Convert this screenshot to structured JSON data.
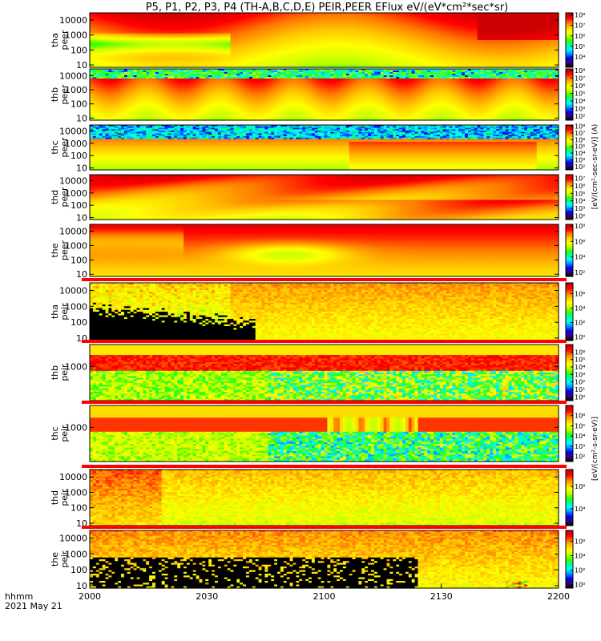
{
  "chart_data": {
    "type": "heatmap",
    "title": "P5, P1, P2, P3, P4 (TH-A,B,C,D,E) PEIR,PEER EFlux eV/(eV*cm²*sec*sr)",
    "x_axis": {
      "label_line1": "hhmm",
      "label_line2": "2021 May 21",
      "ticks": [
        "2000",
        "2030",
        "2100",
        "2130",
        "2200"
      ],
      "range_minutes": [
        0,
        120
      ]
    },
    "colorbar_unit_electron": "[eV/(cm²-sec-sr-eV)] (A)",
    "colorbar_unit_ion": "[eV/(cm²-s-sr-eV)]",
    "panels": [
      {
        "name": "tha-peer",
        "label1": "tha",
        "label2": "peer",
        "yticks": [
          "10",
          "100",
          "1000",
          "10000"
        ],
        "ylim": [
          7,
          30000
        ],
        "cbar_ticks": [
          "10⁴",
          "10⁵",
          "10⁶",
          "10⁷",
          "10⁸"
        ],
        "cbar_range": [
          3,
          8.2
        ],
        "bar_above": false
      },
      {
        "name": "thb-peer",
        "label1": "thb",
        "label2": "peer",
        "yticks": [
          "10",
          "100",
          "1000",
          "10000"
        ],
        "ylim": [
          7,
          30000
        ],
        "cbar_ticks": [
          "10²",
          "10³",
          "10⁴",
          "10⁵",
          "10⁶",
          "10⁷",
          "10⁸"
        ],
        "cbar_range": [
          1.5,
          8.2
        ],
        "bar_above": false
      },
      {
        "name": "thc-peer",
        "label1": "thc",
        "label2": "peer",
        "yticks": [
          "10",
          "100",
          "1000",
          "10000"
        ],
        "ylim": [
          7,
          30000
        ],
        "cbar_ticks": [
          "10²",
          "10³",
          "10⁴",
          "10⁵",
          "10⁶",
          "10⁷",
          "10⁸"
        ],
        "cbar_range": [
          1.5,
          8.2
        ],
        "bar_above": false
      },
      {
        "name": "thd-peer",
        "label1": "thd",
        "label2": "peer",
        "yticks": [
          "10",
          "100",
          "1000",
          "10000"
        ],
        "ylim": [
          7,
          30000
        ],
        "cbar_ticks": [
          "10²",
          "10³",
          "10⁴",
          "10⁵",
          "10⁶",
          "10⁷"
        ],
        "cbar_range": [
          1.5,
          7.5
        ],
        "bar_above": false
      },
      {
        "name": "the-peer",
        "label1": "the",
        "label2": "peer",
        "yticks": [
          "10",
          "100",
          "1000",
          "10000"
        ],
        "ylim": [
          7,
          30000
        ],
        "cbar_ticks": [
          "10²",
          "10⁴",
          "10⁶",
          "10⁸"
        ],
        "cbar_range": [
          1.5,
          8.2
        ],
        "bar_above": false
      },
      {
        "name": "tha-peir",
        "label1": "tha",
        "label2": "peir",
        "yticks": [
          "10",
          "100",
          "1000",
          "10000"
        ],
        "ylim": [
          7,
          30000
        ],
        "cbar_ticks": [
          "10⁰",
          "10²",
          "10⁴",
          "10⁶"
        ],
        "cbar_range": [
          -0.5,
          7.5
        ],
        "bar_above": true
      },
      {
        "name": "thb-peir",
        "label1": "thb",
        "label2": "peir",
        "yticks": [
          "1000"
        ],
        "ylim": [
          5,
          30000
        ],
        "cbar_ticks": [
          "10⁰",
          "10¹",
          "10²",
          "10³",
          "10⁴",
          "10⁵",
          "10⁶"
        ],
        "cbar_range": [
          -0.5,
          7
        ],
        "bar_above": true
      },
      {
        "name": "thc-peir",
        "label1": "thc",
        "label2": "peir",
        "yticks": [
          "1000"
        ],
        "ylim": [
          5,
          30000
        ],
        "cbar_ticks": [
          "10²",
          "10³",
          "10⁴",
          "10⁵",
          "10⁶"
        ],
        "cbar_range": [
          1.5,
          7
        ],
        "bar_above": true
      },
      {
        "name": "thd-peir",
        "label1": "thd",
        "label2": "peir",
        "yticks": [
          "10",
          "100",
          "1000",
          "10000"
        ],
        "ylim": [
          7,
          30000
        ],
        "cbar_ticks": [
          "10⁴",
          "10⁶"
        ],
        "cbar_range": [
          2.5,
          7.5
        ],
        "bar_above": true
      },
      {
        "name": "the-peir",
        "label1": "the",
        "label2": "peir",
        "yticks": [
          "10",
          "100",
          "1000",
          "10000"
        ],
        "ylim": [
          7,
          30000
        ],
        "cbar_ticks": [
          "10⁰",
          "10²",
          "10⁴",
          "10⁶"
        ],
        "cbar_range": [
          -0.5,
          7.5
        ],
        "bar_above": true
      }
    ]
  },
  "colors": {
    "colormap": [
      "#000000",
      "#3a0080",
      "#0000ff",
      "#0096ff",
      "#00ffff",
      "#00ff96",
      "#32ff00",
      "#c8ff00",
      "#ffff00",
      "#ffc800",
      "#ff7800",
      "#ff0000",
      "#cc0000"
    ]
  }
}
